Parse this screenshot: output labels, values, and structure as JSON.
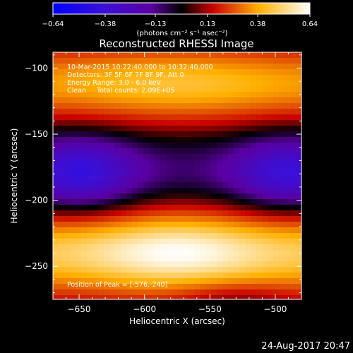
{
  "chart_data": {
    "type": "heatmap",
    "title": "Reconstructed RHESSI Image",
    "xlabel": "Heliocentric X (arcsec)",
    "ylabel": "Heliocentric Y (arcsec)",
    "xlim": [
      -670,
      -480
    ],
    "ylim": [
      -275,
      -88
    ],
    "x_ticks": [
      -650,
      -600,
      -550,
      -500
    ],
    "x_tick_labels": [
      "−650",
      "−600",
      "−550",
      "−500"
    ],
    "y_ticks": [
      -100,
      -150,
      -200,
      -250
    ],
    "y_tick_labels": [
      "−100",
      "−150",
      "−200",
      "−250"
    ],
    "colorbar": {
      "min": -0.64,
      "max": 0.64,
      "ticks": [
        -0.64,
        -0.38,
        -0.13,
        0.13,
        0.38,
        0.64
      ],
      "tick_labels": [
        "−0.64",
        "−0.38",
        "−0.13",
        "0.13",
        "0.38",
        "0.64"
      ],
      "label": "(photons cm⁻² s⁻¹ asec⁻²)",
      "colors": [
        "#0000ff",
        "#5a00c8",
        "#000000",
        "#c80000",
        "#ffb000",
        "#ffffff"
      ]
    },
    "annotations": {
      "time": "10-Mar-2015 10:22:40.000 to 10:32:40.000",
      "detectors": "Detectors: 3F 5F 6F 7F 8F 9F, Att 0",
      "energy": "Energy Range: 3.0 - 6.0 keV",
      "clean": "Clean     Total counts: 2.09E+05",
      "peak": "Position of Peak = [-576,-240]"
    },
    "features": [
      {
        "kind": "positive-band",
        "y_center": -112,
        "peak_x": -576,
        "peak_value": 0.45
      },
      {
        "kind": "negative-band",
        "y_center": -180,
        "min_x": -650,
        "min_value": -0.62
      },
      {
        "kind": "positive-band",
        "y_center": -240,
        "peak_x": -576,
        "peak_value": 0.64
      }
    ],
    "peak_position": [
      -576,
      -240
    ]
  },
  "footer": {
    "date": "24-Aug-2017 20:47"
  }
}
